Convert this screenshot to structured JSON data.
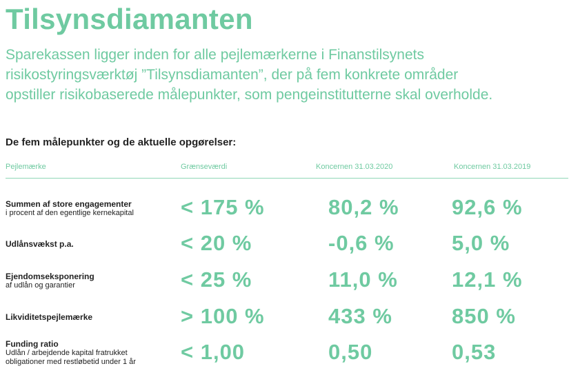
{
  "header": {
    "title": "Tilsynsdiamanten",
    "intro": [
      "Sparekassen ligger inden for alle pejlemærkerne i Finanstilsynets",
      "risikostyringsværktøj ”Tilsynsdiamanten”, der på fem konkrete områder",
      "opstiller risikobaserede målepunkter, som pengeinstitutterne skal overholde."
    ]
  },
  "table": {
    "caption": "De fem målepunkter og de aktuelle opgørelser:",
    "columns": [
      "Pejlemærke",
      "Grænseværdi",
      "Koncernen 31.03.2020",
      "Koncernen 31.03.2019"
    ],
    "rows": [
      {
        "name": "Summen af store engagementer",
        "note": [
          "i procent af den egentlige kernekapital"
        ],
        "cells": [
          "< 175 %",
          "80,2 %",
          "92,6 %"
        ]
      },
      {
        "name": "Udlånsvækst p.a.",
        "cells": [
          "< 20 %",
          "-0,6 %",
          "5,0 %"
        ]
      },
      {
        "name": "Ejendomseksponering",
        "note": [
          "af udlån og garantier"
        ],
        "cells": [
          "< 25 %",
          "11,0 %",
          "12,1 %"
        ]
      },
      {
        "name": "Likviditetspejlemærke",
        "cells": [
          "> 100 %",
          "433 %",
          "850 %"
        ]
      },
      {
        "name": "Funding ratio",
        "note": [
          "Udlån / arbejdende kapital fratrukket",
          "obligationer med restløbetid under 1 år"
        ],
        "cells": [
          "< 1,00",
          "0,50",
          "0,53"
        ]
      }
    ]
  }
}
